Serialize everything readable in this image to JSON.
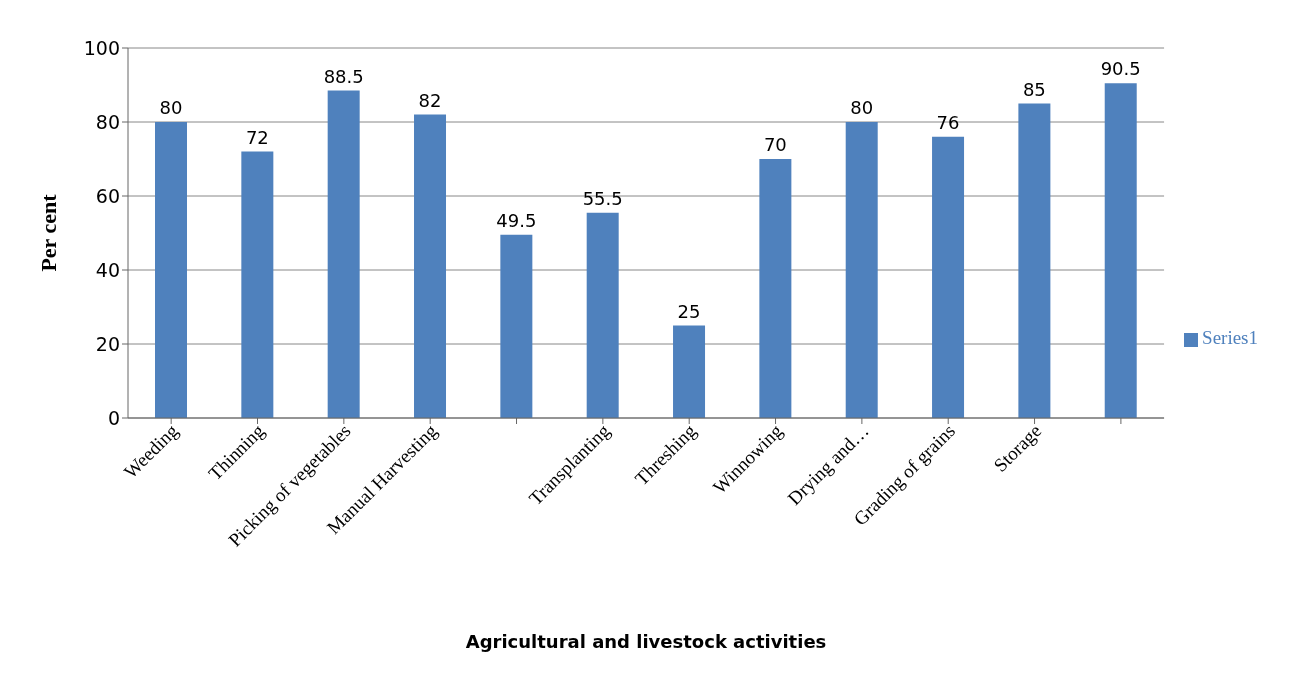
{
  "chart_data": {
    "type": "bar",
    "xlabel": "Agricultural and livestock activities",
    "ylabel": "Per cent",
    "categories": [
      "Weeding",
      "Thinning",
      "Picking of vegetables",
      "Manual Harvesting",
      null,
      "Transplanting",
      "Threshing",
      "Winnowing",
      "Drying and…",
      "Grading of grains",
      "Storage",
      null
    ],
    "series": [
      {
        "name": "Series1",
        "color": "#4f81bd",
        "values": [
          80,
          72,
          88.5,
          82,
          49.5,
          55.5,
          25,
          70,
          80,
          76,
          85,
          90.5
        ]
      }
    ],
    "ylim": [
      0,
      100
    ],
    "yticks": [
      0,
      20,
      40,
      60,
      80,
      100
    ],
    "grid": "y",
    "legend": "right",
    "data_labels": true
  }
}
